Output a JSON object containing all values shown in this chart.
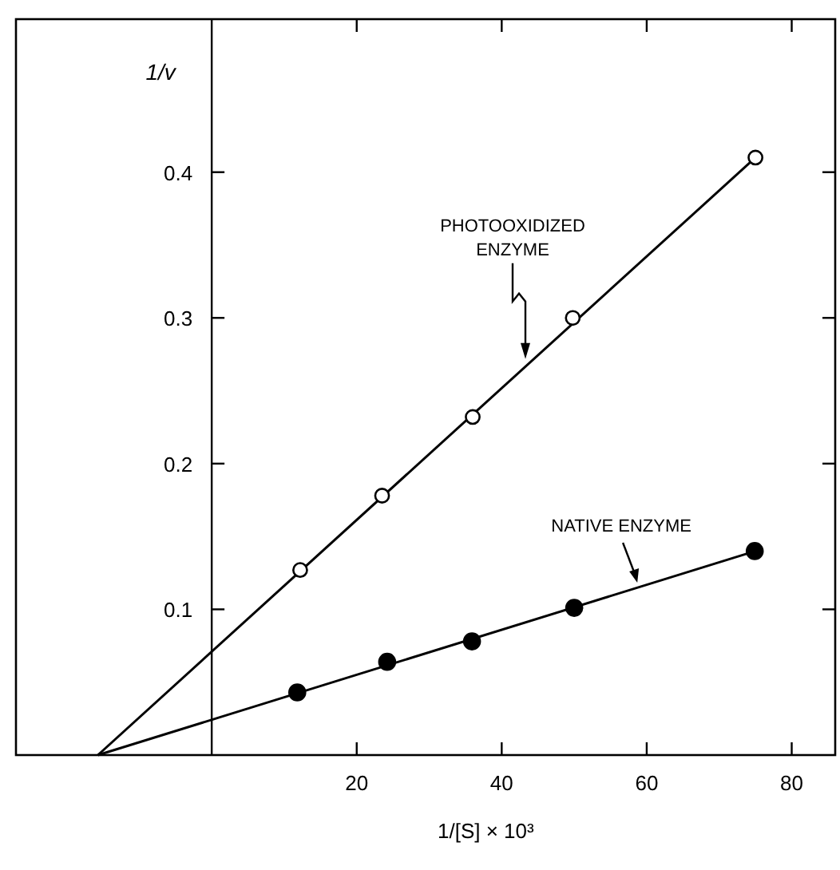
{
  "chart_data": {
    "type": "scatter",
    "xlabel": "1/[S] × 10³",
    "ylabel": "1/v",
    "xlim": [
      -27,
      86
    ],
    "ylim": [
      0,
      0.505
    ],
    "xticks": [
      20,
      40,
      60,
      80
    ],
    "yticks": [
      0.1,
      0.2,
      0.3,
      0.4
    ],
    "grid": false,
    "annotations": [
      "PHOTOOXIDIZED ENZYME",
      {
        "text": "NATIVE ENZYME",
        "x": 58.7,
        "y": 0.115
      }
    ],
    "series": [
      {
        "color": "#000000",
        "marker": "circle",
        "x": [
          12.2,
          23.5,
          36,
          49.8,
          75
        ],
        "values": [
          0.127,
          0.178,
          0.232,
          0.3,
          0.41
        ]
      },
      {
        "color": "#000000",
        "marker": "circle",
        "x": [
          11.8,
          24.2,
          35.9,
          50,
          74.9
        ],
        "values": [
          0.043,
          0.064,
          0.078,
          0.101,
          0.14
        ]
      },
      {
        "type": "line",
        "color": "#000000",
        "x": [
          -15.7,
          75
        ],
        "values": [
          0,
          0.41
        ]
      },
      {
        "type": "line",
        "color": "#000000",
        "x": [
          -15.7,
          75
        ],
        "values": [
          0,
          0.14
        ]
      }
    ]
  }
}
